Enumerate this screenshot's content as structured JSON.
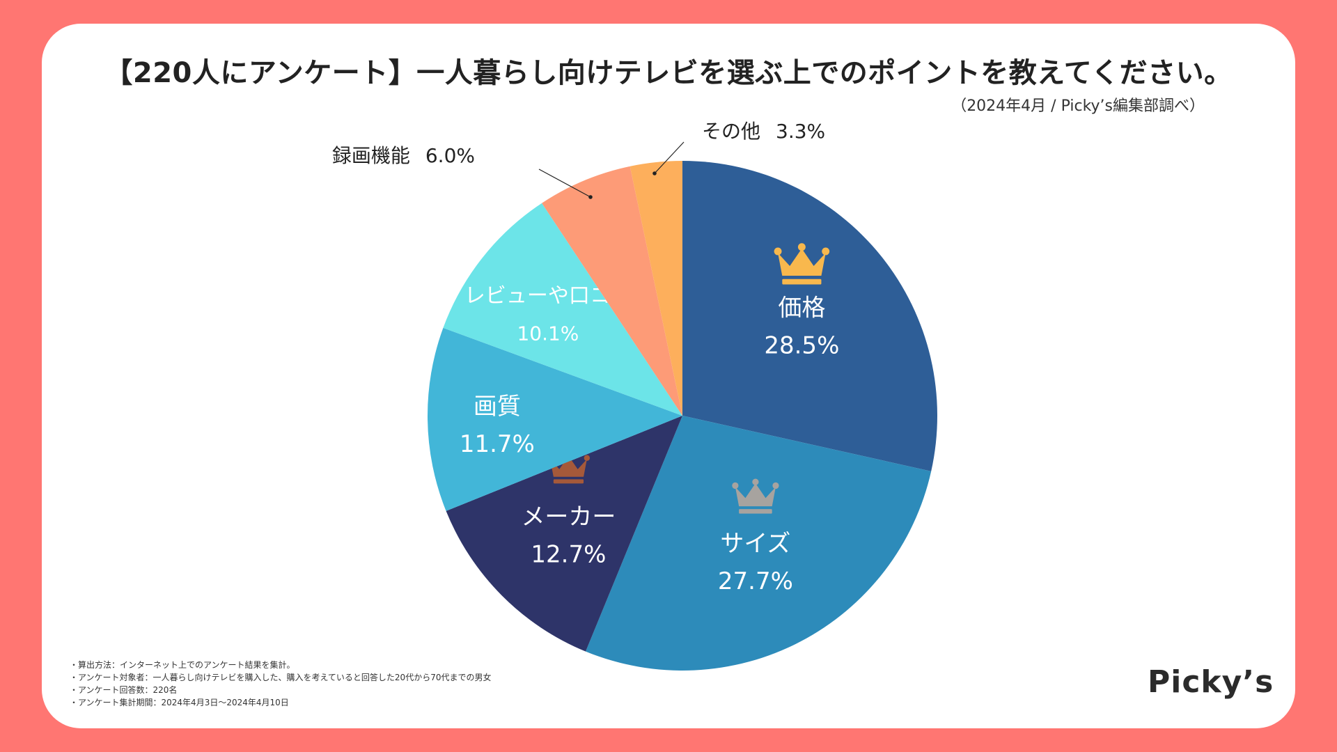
{
  "title": "【220人にアンケート】一人暮らし向けテレビを選ぶ上でのポイントを教えてください。",
  "source": "（2024年4月 / Picky’s編集部調べ）",
  "brand": "Picky’s",
  "notes": [
    "・算出方法：インターネット上でのアンケート結果を集計。",
    "・アンケート対象者：一人暮らし向けテレビを購入した、購入を考えていると回答した20代から70代までの男女",
    "・アンケート回答数：220名",
    "・アンケート集計期間：2024年4月3日〜2024年4月10日"
  ],
  "colors": {
    "background": "#ff7672",
    "gold_crown": "#f8b84d",
    "silver_crown": "#a7a39f",
    "bronze_crown": "#a5593a"
  },
  "chart_data": {
    "type": "pie",
    "title": "【220人にアンケート】一人暮らし向けテレビを選ぶ上でのポイントを教えてください。",
    "start_angle": 0,
    "direction": "clockwise",
    "slices": [
      {
        "label": "価格",
        "value": 28.5,
        "value_label": "28.5%",
        "color": "#2e5e97",
        "text_color": "#ffffff",
        "crown": "gold"
      },
      {
        "label": "サイズ",
        "value": 27.7,
        "value_label": "27.7%",
        "color": "#2d8bba",
        "text_color": "#ffffff",
        "crown": "silver"
      },
      {
        "label": "メーカー",
        "value": 12.7,
        "value_label": "12.7%",
        "color": "#2e3469",
        "text_color": "#ffffff",
        "crown": "bronze"
      },
      {
        "label": "画質",
        "value": 11.7,
        "value_label": "11.7%",
        "color": "#42b6d8",
        "text_color": "#ffffff"
      },
      {
        "label": "レビューや口コミ",
        "value": 10.1,
        "value_label": "10.1%",
        "color": "#6ce4e8",
        "text_color": "#ffffff"
      },
      {
        "label": "録画機能",
        "value": 6.0,
        "value_label": "6.0%",
        "color": "#fd9b77",
        "text_color": "#222222",
        "outside": true
      },
      {
        "label": "その他",
        "value": 3.3,
        "value_label": "3.3%",
        "color": "#fdaf5c",
        "text_color": "#222222",
        "outside": true
      }
    ]
  }
}
